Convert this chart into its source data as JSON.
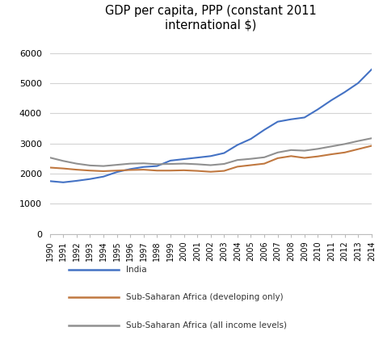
{
  "title": "GDP per capita, PPP (constant 2011\ninternational $)",
  "years": [
    1990,
    1991,
    1992,
    1993,
    1994,
    1995,
    1996,
    1997,
    1998,
    1999,
    2000,
    2001,
    2002,
    2003,
    2004,
    2005,
    2006,
    2007,
    2008,
    2009,
    2010,
    2011,
    2012,
    2013,
    2014
  ],
  "india": [
    1750,
    1710,
    1760,
    1820,
    1900,
    2050,
    2150,
    2220,
    2250,
    2430,
    2480,
    2530,
    2580,
    2680,
    2950,
    3150,
    3450,
    3720,
    3800,
    3860,
    4130,
    4430,
    4700,
    5000,
    5450
  ],
  "ssa_developing": [
    2200,
    2170,
    2130,
    2100,
    2080,
    2100,
    2120,
    2130,
    2100,
    2100,
    2110,
    2090,
    2060,
    2090,
    2230,
    2280,
    2330,
    2510,
    2580,
    2520,
    2570,
    2640,
    2700,
    2810,
    2920
  ],
  "ssa_all": [
    2530,
    2420,
    2330,
    2270,
    2250,
    2290,
    2330,
    2340,
    2310,
    2320,
    2330,
    2310,
    2280,
    2320,
    2450,
    2490,
    2540,
    2700,
    2780,
    2760,
    2820,
    2900,
    2980,
    3080,
    3170
  ],
  "india_color": "#4472C4",
  "ssa_developing_color": "#C07840",
  "ssa_all_color": "#909090",
  "ylim": [
    0,
    6500
  ],
  "yticks": [
    0,
    1000,
    2000,
    3000,
    4000,
    5000,
    6000
  ],
  "legend_india": "India",
  "legend_ssa_dev": "Sub-Saharan Africa (developing only)",
  "legend_ssa_all": "Sub-Saharan Africa (all income levels)",
  "bg_color": "#ffffff",
  "grid_color": "#d3d3d3"
}
